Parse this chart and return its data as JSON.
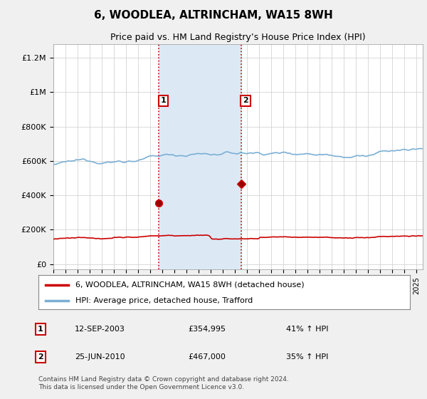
{
  "title": "6, WOODLEA, ALTRINCHAM, WA15 8WH",
  "subtitle": "Price paid vs. HM Land Registry’s House Price Index (HPI)",
  "title_fontsize": 11,
  "subtitle_fontsize": 9,
  "ylabel_ticks": [
    "£0",
    "£200K",
    "£400K",
    "£600K",
    "£800K",
    "£1M",
    "£1.2M"
  ],
  "ytick_values": [
    0,
    200000,
    400000,
    600000,
    800000,
    1000000,
    1200000
  ],
  "ylim": [
    -30000,
    1280000
  ],
  "xlim_start": 1995.0,
  "xlim_end": 2025.5,
  "background_color": "#f0f0f0",
  "plot_bg_color": "#ffffff",
  "transaction1_year": 2003.71,
  "transaction1_price": 354995,
  "transaction2_year": 2010.49,
  "transaction2_price": 467000,
  "shade_color": "#dce9f5",
  "vline_color": "#cc0000",
  "legend_label_red": "6, WOODLEA, ALTRINCHAM, WA15 8WH (detached house)",
  "legend_label_blue": "HPI: Average price, detached house, Trafford",
  "table_row1": [
    "1",
    "12-SEP-2003",
    "£354,995",
    "41% ↑ HPI"
  ],
  "table_row2": [
    "2",
    "25-JUN-2010",
    "£467,000",
    "35% ↑ HPI"
  ],
  "footer": "Contains HM Land Registry data © Crown copyright and database right 2024.\nThis data is licensed under the Open Government Licence v3.0.",
  "red_color": "#cc0000",
  "blue_color": "#7bafd4"
}
